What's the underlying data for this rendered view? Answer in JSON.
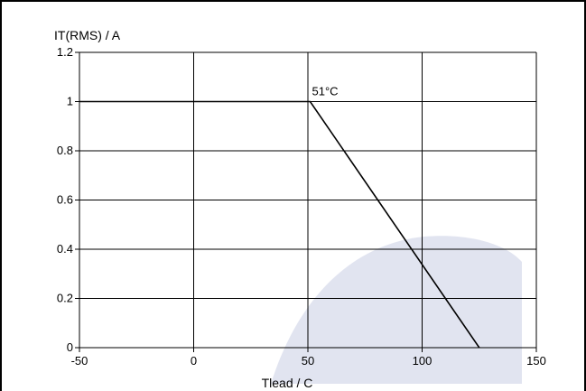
{
  "chart_data": {
    "type": "line",
    "title": "",
    "ylabel": "IT(RMS) / A",
    "xlabel": "Tlead / C",
    "xlim": [
      -50,
      150
    ],
    "ylim": [
      0,
      1.2
    ],
    "xticks": [
      -50,
      0,
      50,
      100,
      150
    ],
    "yticks": [
      0,
      0.2,
      0.4,
      0.6,
      0.8,
      1,
      1.2
    ],
    "xtick_labels": [
      "-50",
      "0",
      "50",
      "100",
      "150"
    ],
    "ytick_labels": [
      "0",
      "0.2",
      "0.4",
      "0.6",
      "0.8",
      "1",
      "1.2"
    ],
    "grid": true,
    "series": [
      {
        "x": [
          -50,
          51,
          125
        ],
        "y": [
          1,
          1,
          0
        ]
      }
    ],
    "annotations": [
      {
        "text": "51°C",
        "x": 51,
        "y": 1
      }
    ],
    "colors": {
      "line": "#000000",
      "grid": "#000000",
      "watermark": "#c9cde3"
    }
  }
}
